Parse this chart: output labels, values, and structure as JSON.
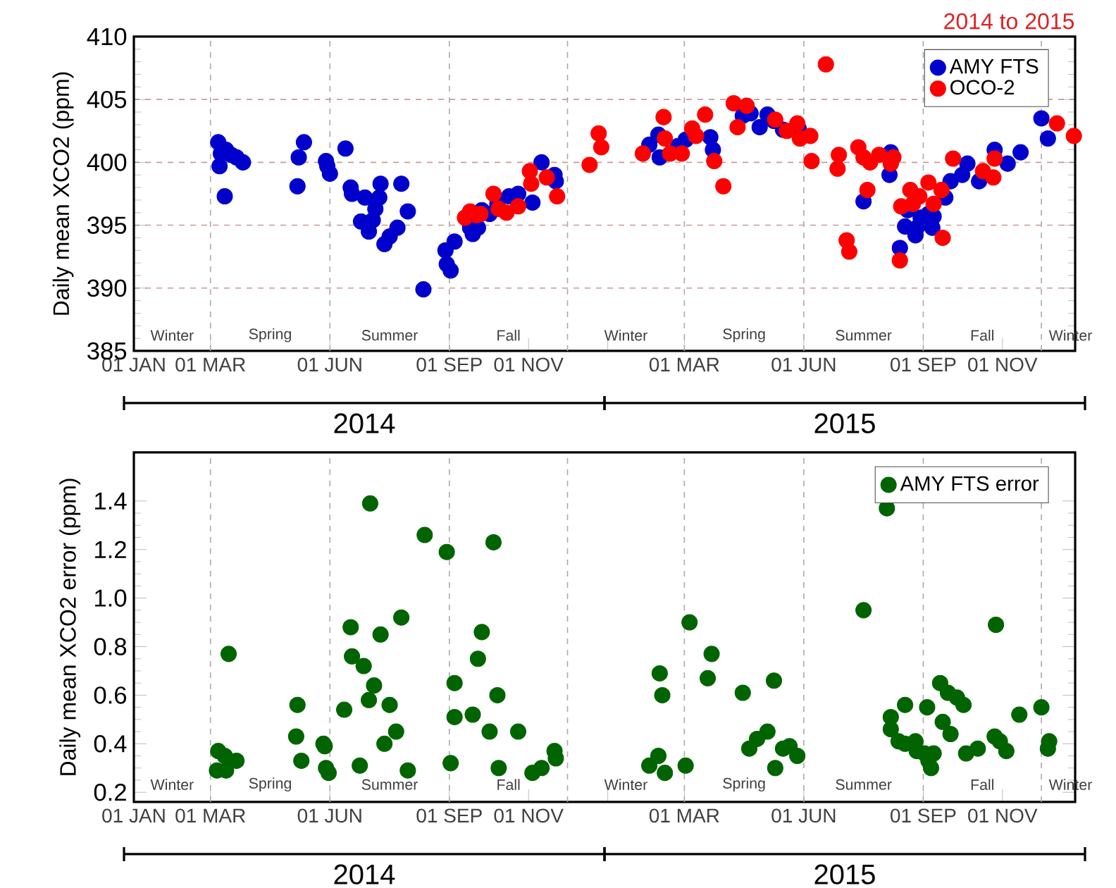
{
  "chart_data": [
    {
      "type": "scatter",
      "title": "2014 to 2015",
      "ylabel": "Daily mean XCO2 (ppm)",
      "xlim": [
        "2014-01-01",
        "2015-12-27"
      ],
      "ylim": [
        385,
        410
      ],
      "xticks": [
        {
          "value": "2014-01-01",
          "label": "01 JAN"
        },
        {
          "value": "2014-03-01",
          "label": "01 MAR"
        },
        {
          "value": "2014-06-01",
          "label": "01 JUN"
        },
        {
          "value": "2014-09-01",
          "label": "01 SEP"
        },
        {
          "value": "2014-11-01",
          "label": "01 NOV"
        },
        {
          "value": "2015-01-01",
          "label": null
        },
        {
          "value": "2015-03-01",
          "label": "01 MAR"
        },
        {
          "value": "2015-06-01",
          "label": "01 JUN"
        },
        {
          "value": "2015-09-01",
          "label": "01 SEP"
        },
        {
          "value": "2015-11-01",
          "label": "01 NOV"
        }
      ],
      "yticks": [
        385,
        390,
        395,
        400,
        405,
        410
      ],
      "grid": "y",
      "legend": "top right",
      "series": [
        {
          "name": "AMY FTS",
          "color": "#0000cc",
          "x": [
            "2014-03-07",
            "2014-03-09",
            "2014-03-13",
            "2014-03-17",
            "2014-03-21",
            "2014-03-26",
            "2014-03-08",
            "2014-03-12",
            "2014-05-12",
            "2014-05-08",
            "2014-05-07",
            "2014-05-29",
            "2014-05-30",
            "2014-06-01",
            "2014-06-13",
            "2014-06-17",
            "2014-06-18",
            "2014-06-28",
            "2014-07-09",
            "2014-07-10",
            "2014-06-25",
            "2014-07-04",
            "2014-07-06",
            "2014-07-01",
            "2014-07-13",
            "2014-07-17",
            "2014-07-23",
            "2014-07-26",
            "2014-07-31",
            "2014-08-12",
            "2014-08-29",
            "2014-08-30",
            "2014-09-02",
            "2014-09-05",
            "2014-09-17",
            "2014-09-19",
            "2014-09-23",
            "2014-09-26",
            "2014-10-02",
            "2014-10-08",
            "2014-10-17",
            "2014-10-24",
            "2014-11-04",
            "2014-11-11",
            "2014-11-21",
            "2014-11-22",
            "2015-02-02",
            "2015-02-09",
            "2015-02-10",
            "2015-02-24",
            "2015-03-02",
            "2015-03-21",
            "2015-03-23",
            "2015-04-15",
            "2015-04-21",
            "2015-04-28",
            "2015-05-04",
            "2015-05-09",
            "2015-05-16",
            "2015-05-28",
            "2015-07-17",
            "2015-08-07",
            "2015-08-06",
            "2015-08-14",
            "2015-08-18",
            "2015-08-20",
            "2015-08-26",
            "2015-08-27",
            "2015-08-30",
            "2015-09-05",
            "2015-09-09",
            "2015-09-08",
            "2015-09-18",
            "2015-09-22",
            "2015-10-01",
            "2015-10-05",
            "2015-10-14",
            "2015-10-26",
            "2015-11-05",
            "2015-11-15",
            "2015-12-01",
            "2015-12-06"
          ],
          "values": [
            401.6,
            400.7,
            401.0,
            400.6,
            400.4,
            400.0,
            399.7,
            397.3,
            401.6,
            400.4,
            398.1,
            400.1,
            399.7,
            399.1,
            401.1,
            398.0,
            397.5,
            397.2,
            397.2,
            398.3,
            395.3,
            395.4,
            396.3,
            394.5,
            393.5,
            394.1,
            394.8,
            398.3,
            396.1,
            389.9,
            393.0,
            391.9,
            391.4,
            393.7,
            394.8,
            394.3,
            394.8,
            396.2,
            395.9,
            396.7,
            397.3,
            397.5,
            396.8,
            400.0,
            399.0,
            398.5,
            401.4,
            402.2,
            400.4,
            401.3,
            401.8,
            402.0,
            401.0,
            403.7,
            403.9,
            402.8,
            403.8,
            403.3,
            402.6,
            402.7,
            396.9,
            400.8,
            399.0,
            393.2,
            394.9,
            396.2,
            394.2,
            394.8,
            395.6,
            395.9,
            395.7,
            394.8,
            397.2,
            398.5,
            399.0,
            399.9,
            398.5,
            401.0,
            399.9,
            400.8,
            403.5,
            401.9
          ]
        },
        {
          "name": "OCO-2",
          "color": "#ff0000",
          "x": [
            "2014-09-13",
            "2014-09-17",
            "2014-09-22",
            "2014-09-25",
            "2014-10-05",
            "2014-10-09",
            "2014-10-15",
            "2014-10-24",
            "2014-11-02",
            "2014-11-03",
            "2014-11-15",
            "2014-11-23",
            "2014-12-18",
            "2014-12-25",
            "2014-12-27",
            "2015-01-28",
            "2015-02-13",
            "2015-02-14",
            "2015-02-18",
            "2015-02-27",
            "2015-03-07",
            "2015-03-10",
            "2015-03-17",
            "2015-03-24",
            "2015-03-31",
            "2015-04-08",
            "2015-04-11",
            "2015-04-18",
            "2015-05-10",
            "2015-05-19",
            "2015-05-27",
            "2015-05-29",
            "2015-06-06",
            "2015-06-07",
            "2015-06-18",
            "2015-06-28",
            "2015-06-27",
            "2015-07-04",
            "2015-07-06",
            "2015-07-13",
            "2015-07-17",
            "2015-07-22",
            "2015-07-29",
            "2015-07-20",
            "2015-08-09",
            "2015-08-07",
            "2015-08-14",
            "2015-08-15",
            "2015-08-22",
            "2015-08-24",
            "2015-08-29",
            "2015-09-05",
            "2015-09-09",
            "2015-09-15",
            "2015-09-16",
            "2015-09-24",
            "2015-10-17",
            "2015-10-25",
            "2015-10-26",
            "2015-12-13",
            "2015-12-26"
          ],
          "values": [
            395.6,
            396.1,
            395.8,
            395.9,
            397.5,
            396.3,
            396.0,
            396.5,
            399.3,
            398.3,
            398.8,
            397.3,
            399.8,
            402.3,
            401.2,
            400.7,
            403.6,
            401.9,
            400.7,
            400.7,
            402.7,
            402.1,
            403.8,
            400.1,
            398.1,
            404.7,
            402.8,
            404.5,
            403.4,
            402.5,
            403.1,
            401.9,
            402.1,
            400.1,
            407.8,
            400.6,
            399.5,
            393.8,
            392.9,
            401.2,
            400.4,
            400.0,
            400.6,
            397.8,
            400.4,
            399.9,
            392.2,
            396.5,
            397.8,
            396.7,
            397.3,
            398.4,
            396.7,
            397.8,
            394.0,
            400.3,
            399.3,
            398.8,
            400.3,
            403.1,
            402.1
          ]
        }
      ],
      "ref_lines": [
        {
          "axis": "x",
          "value": "2014-03-01",
          "color": "#aaaaaa",
          "line_style": "dashed"
        },
        {
          "axis": "x",
          "value": "2014-06-01",
          "color": "#aaaaaa",
          "line_style": "dashed"
        },
        {
          "axis": "x",
          "value": "2014-09-01",
          "color": "#aaaaaa",
          "line_style": "dashed"
        },
        {
          "axis": "x",
          "value": "2014-12-01",
          "color": "#aaaaaa",
          "line_style": "dashed"
        },
        {
          "axis": "x",
          "value": "2015-03-01",
          "color": "#aaaaaa",
          "line_style": "dashed"
        },
        {
          "axis": "x",
          "value": "2015-06-01",
          "color": "#aaaaaa",
          "line_style": "dashed"
        },
        {
          "axis": "x",
          "value": "2015-09-01",
          "color": "#aaaaaa",
          "line_style": "dashed"
        },
        {
          "axis": "x",
          "value": "2015-12-01",
          "color": "#aaaaaa",
          "line_style": "dashed"
        }
      ],
      "annotations": [
        "Winter",
        "Spring",
        "Summer",
        "Fall",
        "Winter",
        "Spring",
        "Summer",
        "Fall",
        "Winter",
        "2014",
        "2015"
      ]
    },
    {
      "type": "scatter",
      "ylabel": "Daily mean XCO2 error (ppm)",
      "xlim": [
        "2014-01-01",
        "2015-12-27"
      ],
      "ylim": [
        0.16,
        1.6
      ],
      "xticks": [
        {
          "value": "2014-01-01",
          "label": "01 JAN"
        },
        {
          "value": "2014-03-01",
          "label": "01 MAR"
        },
        {
          "value": "2014-06-01",
          "label": "01 JUN"
        },
        {
          "value": "2014-09-01",
          "label": "01 SEP"
        },
        {
          "value": "2014-11-01",
          "label": "01 NOV"
        },
        {
          "value": "2015-01-01",
          "label": null
        },
        {
          "value": "2015-03-01",
          "label": "01 MAR"
        },
        {
          "value": "2015-06-01",
          "label": "01 JUN"
        },
        {
          "value": "2015-09-01",
          "label": "01 SEP"
        },
        {
          "value": "2015-11-01",
          "label": "01 NOV"
        }
      ],
      "yticks": [
        0.2,
        0.4,
        0.6,
        0.8,
        {
          "value": 1.0,
          "label": "1.0"
        },
        1.2,
        1.4
      ],
      "legend": "top right",
      "series": [
        {
          "name": "AMY FTS error",
          "color": "#006400",
          "x": [
            "2014-03-15",
            "2014-03-07",
            "2014-03-12",
            "2014-03-21",
            "2014-03-06",
            "2014-03-13",
            "2014-05-07",
            "2014-05-06",
            "2014-05-10",
            "2014-05-27",
            "2014-05-28",
            "2014-05-29",
            "2014-05-31",
            "2014-06-17",
            "2014-06-18",
            "2014-06-27",
            "2014-06-12",
            "2014-07-02",
            "2014-07-05",
            "2014-07-01",
            "2014-06-24",
            "2014-07-10",
            "2014-07-17",
            "2014-07-22",
            "2014-07-13",
            "2014-07-26",
            "2014-07-31",
            "2014-08-13",
            "2014-08-30",
            "2014-09-02",
            "2014-09-05",
            "2014-09-05",
            "2014-09-19",
            "2014-09-23",
            "2014-09-26",
            "2014-10-05",
            "2014-10-08",
            "2014-10-02",
            "2014-10-09",
            "2014-10-24",
            "2014-11-04",
            "2014-11-11",
            "2014-11-21",
            "2014-11-22",
            "2015-08-04",
            "2015-07-17",
            "2015-10-27",
            "2015-03-05",
            "2015-03-22",
            "2015-02-10",
            "2015-02-12",
            "2015-03-19",
            "2015-04-15",
            "2015-05-09",
            "2015-05-04",
            "2015-04-26",
            "2015-04-20",
            "2015-05-16",
            "2015-05-21",
            "2015-05-27",
            "2015-05-10",
            "2015-02-09",
            "2015-02-02",
            "2015-02-14",
            "2015-03-02",
            "2015-09-14",
            "2015-09-20",
            "2015-09-27",
            "2015-10-02",
            "2015-08-18",
            "2015-09-04",
            "2015-08-07",
            "2015-08-07",
            "2015-09-16",
            "2015-09-22",
            "2015-08-13",
            "2015-08-18",
            "2015-08-26",
            "2015-08-27",
            "2015-09-02",
            "2015-09-09",
            "2015-09-05",
            "2015-09-07",
            "2015-10-04",
            "2015-10-13",
            "2015-10-26",
            "2015-10-30",
            "2015-11-04",
            "2015-11-14",
            "2015-12-01",
            "2015-12-07",
            "2015-12-06"
          ],
          "values": [
            0.77,
            0.37,
            0.35,
            0.33,
            0.29,
            0.29,
            0.56,
            0.43,
            0.33,
            0.4,
            0.39,
            0.3,
            0.28,
            0.88,
            0.76,
            0.72,
            0.54,
            1.39,
            0.64,
            0.58,
            0.31,
            0.85,
            0.56,
            0.45,
            0.4,
            0.92,
            0.29,
            1.26,
            1.19,
            0.32,
            0.65,
            0.51,
            0.52,
            0.75,
            0.86,
            1.23,
            0.6,
            0.45,
            0.3,
            0.45,
            0.28,
            0.3,
            0.37,
            0.34,
            1.37,
            0.95,
            0.89,
            0.9,
            0.77,
            0.69,
            0.6,
            0.67,
            0.61,
            0.66,
            0.45,
            0.42,
            0.38,
            0.38,
            0.39,
            0.35,
            0.3,
            0.35,
            0.31,
            0.28,
            0.31,
            0.65,
            0.61,
            0.59,
            0.56,
            0.56,
            0.55,
            0.51,
            0.46,
            0.49,
            0.44,
            0.41,
            0.4,
            0.41,
            0.37,
            0.36,
            0.36,
            0.33,
            0.3,
            0.36,
            0.38,
            0.43,
            0.41,
            0.37,
            0.52,
            0.55,
            0.41,
            0.38
          ]
        }
      ],
      "ref_lines": [
        {
          "axis": "x",
          "value": "2014-03-01",
          "color": "#aaaaaa",
          "line_style": "dashed"
        },
        {
          "axis": "x",
          "value": "2014-06-01",
          "color": "#aaaaaa",
          "line_style": "dashed"
        },
        {
          "axis": "x",
          "value": "2014-09-01",
          "color": "#aaaaaa",
          "line_style": "dashed"
        },
        {
          "axis": "x",
          "value": "2014-12-01",
          "color": "#aaaaaa",
          "line_style": "dashed"
        },
        {
          "axis": "x",
          "value": "2015-03-01",
          "color": "#aaaaaa",
          "line_style": "dashed"
        },
        {
          "axis": "x",
          "value": "2015-06-01",
          "color": "#aaaaaa",
          "line_style": "dashed"
        },
        {
          "axis": "x",
          "value": "2015-09-01",
          "color": "#aaaaaa",
          "line_style": "dashed"
        },
        {
          "axis": "x",
          "value": "2015-12-01",
          "color": "#aaaaaa",
          "line_style": "dashed"
        }
      ],
      "annotations": [
        "Winter",
        "Spring",
        "Summer",
        "Fall",
        "Winter",
        "Spring",
        "Summer",
        "Fall",
        "Winter",
        "2014",
        "2015"
      ]
    }
  ]
}
